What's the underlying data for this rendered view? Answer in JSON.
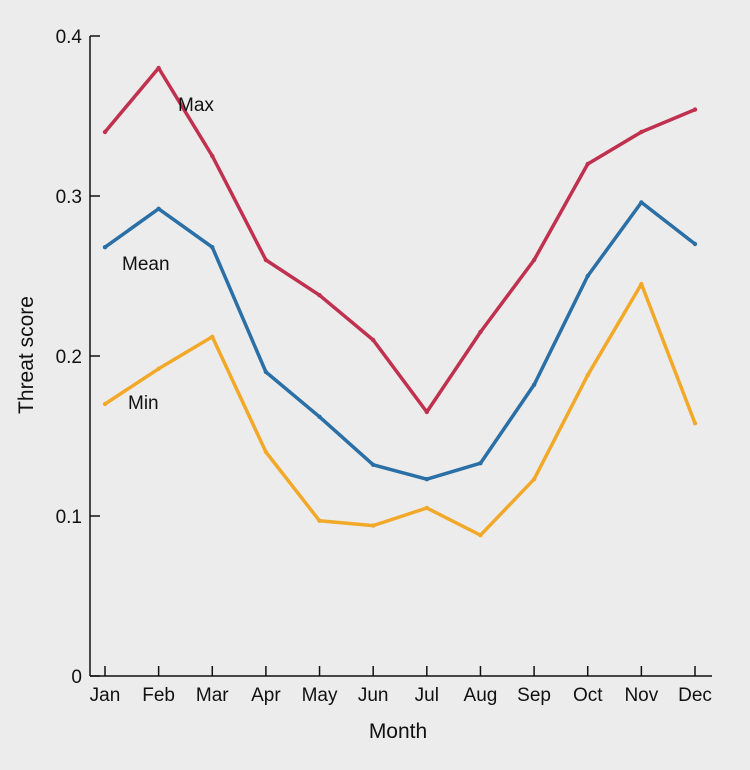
{
  "chart_data": {
    "type": "line",
    "title": "",
    "xlabel": "Month",
    "ylabel": "Threat score",
    "ylim": [
      0,
      0.4
    ],
    "yticks": [
      "0",
      "0.1",
      "0.2",
      "0.3",
      "0.4"
    ],
    "yticks_values": [
      0,
      0.1,
      0.2,
      0.3,
      0.4
    ],
    "grid": false,
    "legend": "inline labels",
    "categories": [
      "Jan",
      "Feb",
      "Mar",
      "Apr",
      "May",
      "Jun",
      "Jul",
      "Aug",
      "Sep",
      "Oct",
      "Nov",
      "Dec"
    ],
    "series": [
      {
        "name": "Max",
        "color": "#c0304f",
        "values": [
          0.34,
          0.38,
          0.325,
          0.26,
          0.238,
          0.21,
          0.165,
          0.215,
          0.26,
          0.32,
          0.34,
          0.354
        ]
      },
      {
        "name": "Mean",
        "color": "#2a6fa5",
        "values": [
          0.268,
          0.292,
          0.268,
          0.19,
          0.162,
          0.132,
          0.123,
          0.133,
          0.182,
          0.25,
          0.296,
          0.27
        ]
      },
      {
        "name": "Min",
        "color": "#f2a92a",
        "values": [
          0.17,
          0.192,
          0.212,
          0.14,
          0.097,
          0.094,
          0.105,
          0.088,
          0.123,
          0.188,
          0.245,
          0.158
        ]
      }
    ]
  }
}
